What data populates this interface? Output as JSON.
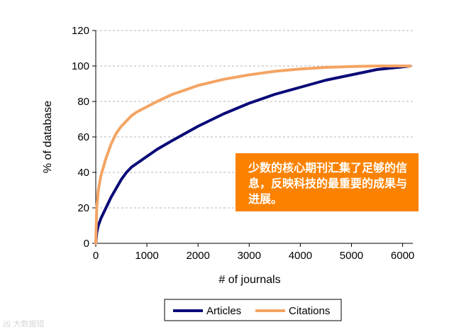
{
  "colors": {
    "articles": "#0a0a78",
    "citations": "#f4a463",
    "annotation_bg": "#fb8200",
    "grid": "#b4b4b4"
  },
  "annotation": {
    "text": "少数的核心期刊汇集了足够的信息，反映科技的最重要的成果与进展。"
  },
  "watermark": {
    "text": "凶 大数据猎"
  },
  "chart_data": {
    "type": "line",
    "title": "",
    "xlabel": "# of journals",
    "ylabel": "% of database",
    "xlim": [
      0,
      6200
    ],
    "ylim": [
      0,
      120
    ],
    "xticks": [
      "0",
      "1000",
      "2000",
      "3000",
      "4000",
      "5000",
      "6000"
    ],
    "yticks": [
      "0",
      "20",
      "40",
      "60",
      "80",
      "100",
      "120"
    ],
    "grid": "horizontal dashed",
    "legend_position": "bottom",
    "series": [
      {
        "name": "Articles",
        "color": "#0a0a78",
        "x": [
          0,
          20,
          50,
          100,
          200,
          300,
          400,
          500,
          600,
          700,
          800,
          1000,
          1200,
          1500,
          2000,
          2500,
          3000,
          3500,
          4000,
          4500,
          5000,
          5500,
          6000,
          6150
        ],
        "y": [
          0,
          6,
          10,
          14,
          20,
          26,
          31,
          36,
          40,
          43,
          45,
          49,
          53,
          58,
          66,
          73,
          79,
          84,
          88,
          92,
          95,
          98,
          99.5,
          100
        ]
      },
      {
        "name": "Citations",
        "color": "#f4a463",
        "x": [
          0,
          20,
          50,
          100,
          200,
          300,
          400,
          500,
          600,
          700,
          800,
          1000,
          1200,
          1500,
          2000,
          2500,
          3000,
          3500,
          4000,
          4500,
          5000,
          5500,
          6000,
          6150
        ],
        "y": [
          0,
          20,
          30,
          38,
          48,
          56,
          62,
          66,
          69,
          72,
          74,
          77,
          80,
          84,
          89,
          92.5,
          95,
          97,
          98.3,
          99.2,
          99.7,
          100,
          100,
          100
        ]
      }
    ]
  }
}
